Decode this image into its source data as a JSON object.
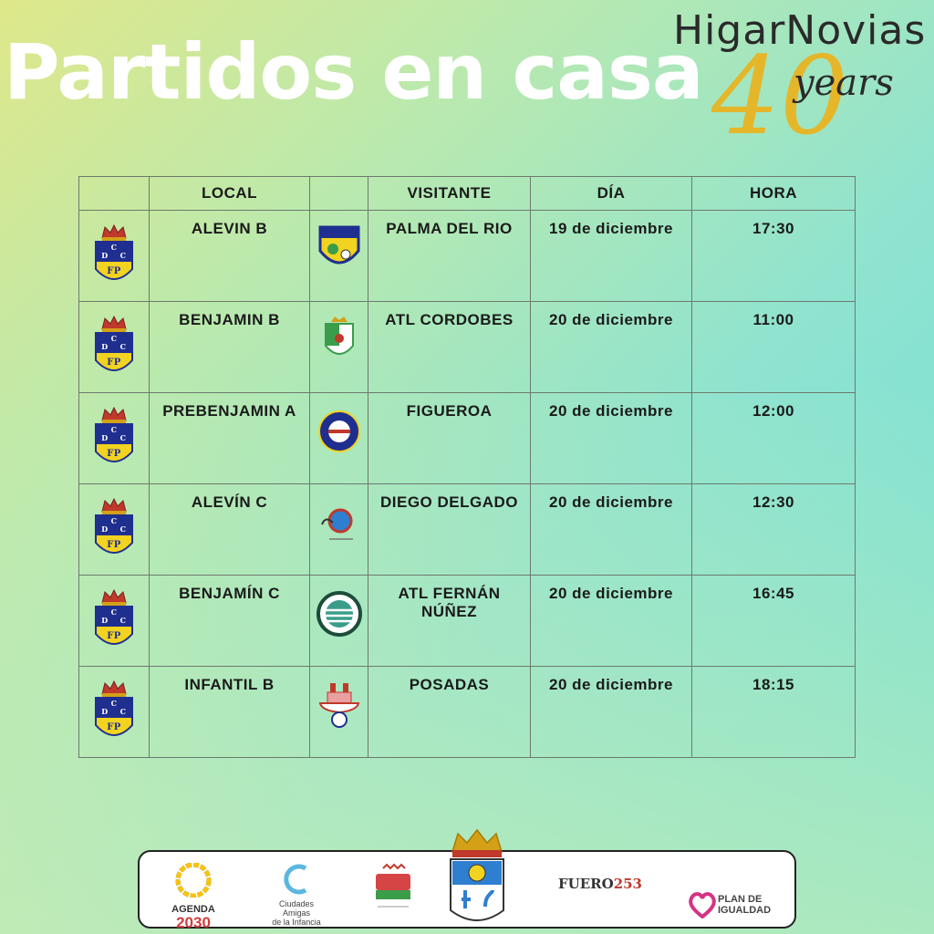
{
  "header": {
    "title": "Partidos en casa",
    "sponsor_name": "HigarNovias",
    "sponsor_number": "40",
    "sponsor_years": "years"
  },
  "table": {
    "headers": [
      "",
      "LOCAL",
      "",
      "VISITANTE",
      "DÍA",
      "HORA"
    ],
    "rows": [
      {
        "local": "ALEVIN B",
        "visitante": "PALMA DEL RIO",
        "dia": "19 de diciembre",
        "hora": "17:30",
        "opp_icon": "palma-crest-icon"
      },
      {
        "local": "BENJAMIN B",
        "visitante": "ATL CORDOBES",
        "dia": "20 de diciembre",
        "hora": "11:00",
        "opp_icon": "atl-cordobes-crest-icon"
      },
      {
        "local": "PREBENJAMIN A",
        "visitante": "FIGUEROA",
        "dia": "20 de diciembre",
        "hora": "12:00",
        "opp_icon": "figueroa-crest-icon"
      },
      {
        "local": "ALEVÍN C",
        "visitante": "DIEGO DELGADO",
        "dia": "20 de diciembre",
        "hora": "12:30",
        "opp_icon": "diego-delgado-crest-icon"
      },
      {
        "local": "BENJAMÍN C",
        "visitante": "ATL FERNÁN NÚÑEZ",
        "dia": "20 de diciembre",
        "hora": "16:45",
        "opp_icon": "fernan-nunez-crest-icon"
      },
      {
        "local": "INFANTIL B",
        "visitante": "POSADAS",
        "dia": "20 de diciembre",
        "hora": "18:15",
        "opp_icon": "posadas-crest-icon"
      }
    ],
    "home_crest_letters": [
      "C",
      "D",
      "C",
      "FP"
    ]
  },
  "footer": {
    "agenda_label": "AGENDA",
    "agenda_year": "2030",
    "ciudades_line1": "Ciudades",
    "ciudades_line2": "Amigas",
    "ciudades_line3": "de la Infancia",
    "fuero_word": "FUERO",
    "fuero_num": "253",
    "plan_line1": "PLAN DE",
    "plan_line2": "IGUALDAD"
  },
  "colors": {
    "home_crest_blue": "#1f2f8f",
    "home_crest_yellow": "#f2d31f",
    "crown_red": "#c0392b",
    "sponsor_gold": "#e5b62a"
  }
}
